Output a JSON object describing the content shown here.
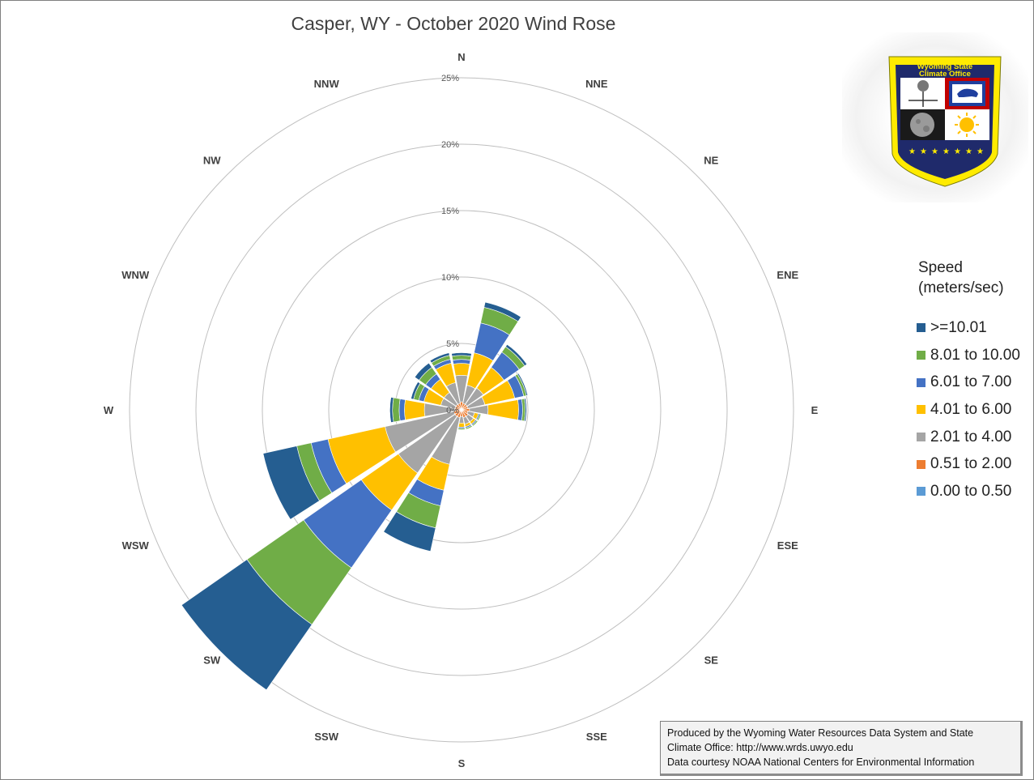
{
  "chart_data": {
    "type": "wind-rose",
    "title": "Casper, WY - October 2020 Wind Rose",
    "radial_axis": {
      "ticks": [
        "0%",
        "5%",
        "10%",
        "15%",
        "20%",
        "25%"
      ],
      "max": 25
    },
    "directions": [
      "N",
      "NNE",
      "NE",
      "ENE",
      "E",
      "ESE",
      "SE",
      "SSE",
      "S",
      "SSW",
      "SW",
      "WSW",
      "W",
      "WNW",
      "NW",
      "NNW"
    ],
    "legend_title": [
      "Speed",
      "(meters/sec)"
    ],
    "series": [
      {
        "name": "0.00 to 0.50",
        "color": "#5b9bd5",
        "values": [
          0.1,
          0.1,
          0.1,
          0.1,
          0.1,
          0.1,
          0.1,
          0.1,
          0.1,
          0.1,
          0.1,
          0.1,
          0.1,
          0.1,
          0.1,
          0.1
        ]
      },
      {
        "name": "0.51 to 2.00",
        "color": "#ed7d31",
        "values": [
          0.5,
          0.4,
          0.4,
          0.4,
          0.5,
          0.4,
          0.5,
          0.5,
          0.4,
          0.5,
          0.5,
          0.5,
          0.4,
          0.4,
          0.4,
          0.4
        ]
      },
      {
        "name": "2.01 to 4.00",
        "color": "#a5a5a5",
        "values": [
          2.0,
          1.4,
          1.5,
          1.3,
          1.4,
          0.5,
          0.5,
          0.5,
          0.5,
          3.6,
          5.2,
          5.3,
          2.3,
          1.1,
          1.1,
          1.6
        ]
      },
      {
        "name": "4.01 to 6.00",
        "color": "#ffc000",
        "values": [
          0.9,
          2.5,
          1.9,
          2.3,
          2.3,
          0.3,
          0.2,
          0.2,
          0.3,
          2.0,
          3.4,
          4.4,
          1.5,
          1.3,
          1.2,
          1.5
        ]
      },
      {
        "name": "6.01 to 7.00",
        "color": "#4472c4",
        "values": [
          0.3,
          2.3,
          1.4,
          0.7,
          0.3,
          0.1,
          0.1,
          0.1,
          0.1,
          1.2,
          5.3,
          1.3,
          0.4,
          0.4,
          0.5,
          0.3
        ]
      },
      {
        "name": "8.01 to 10.00",
        "color": "#70ad47",
        "values": [
          0.3,
          1.2,
          0.5,
          0.2,
          0.2,
          0.1,
          0.1,
          0.1,
          0.1,
          1.7,
          5.2,
          1.1,
          0.5,
          0.4,
          0.6,
          0.3
        ]
      },
      {
        "name": ">=10.01",
        "color": "#255e91",
        "values": [
          0.2,
          0.4,
          0.2,
          0.1,
          0.1,
          0.0,
          0.0,
          0.0,
          0.0,
          1.8,
          6.0,
          2.6,
          0.2,
          0.2,
          0.4,
          0.2
        ]
      }
    ],
    "legend_placement": "right",
    "grid": true
  },
  "logo": {
    "text_line1": "Wyoming State",
    "text_line2": "Climate Office"
  },
  "credits": {
    "line1": "Produced by the Wyoming Water Resources Data System and State",
    "line2": "Climate Office: http://www.wrds.uwyo.edu",
    "line3": "Data courtesy NOAA National Centers for Environmental Information"
  }
}
